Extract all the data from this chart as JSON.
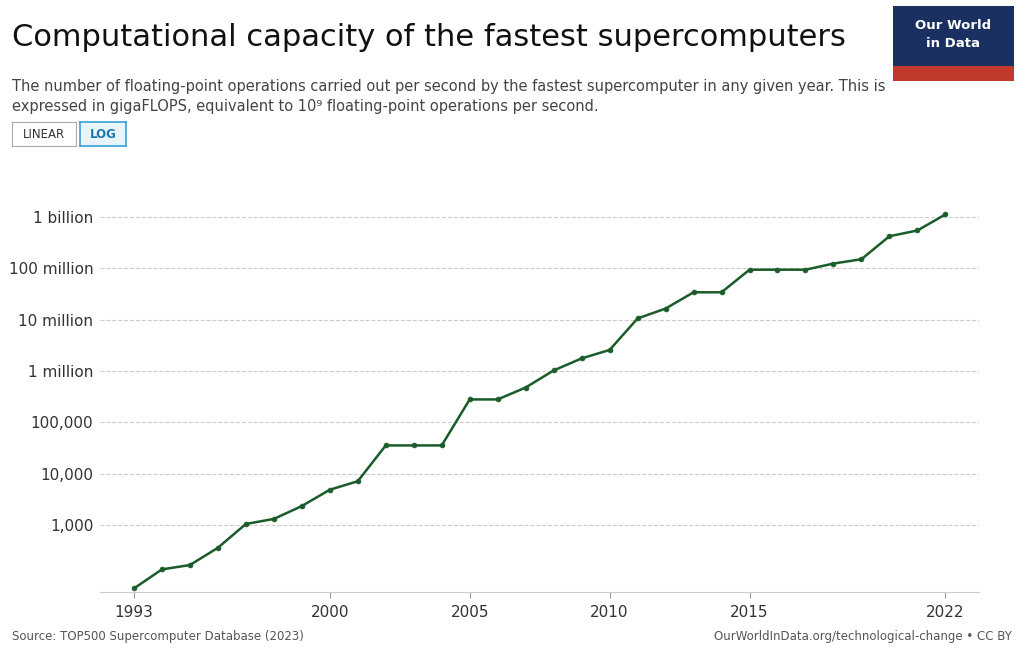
{
  "title": "Computational capacity of the fastest supercomputers",
  "subtitle_line1": "The number of floating-point operations carried out per second by the fastest supercomputer in any given year. This is",
  "subtitle_line2": "expressed in gigaFLOPS, equivalent to 10⁹ floating-point operations per second.",
  "source": "Source: TOP500 Supercomputer Database (2023)",
  "credit": "OurWorldInData.org/technological-change • CC BY",
  "line_color": "#1a5c2a",
  "marker_color": "#1a5c2a",
  "background_color": "#ffffff",
  "years": [
    1993,
    1994,
    1995,
    1996,
    1997,
    1998,
    1999,
    2000,
    2001,
    2002,
    2003,
    2004,
    2005,
    2006,
    2007,
    2008,
    2009,
    2010,
    2011,
    2012,
    2013,
    2014,
    2015,
    2016,
    2017,
    2018,
    2019,
    2020,
    2021,
    2022
  ],
  "values": [
    59.7,
    140,
    170,
    368,
    1068,
    1338,
    2379,
    4938,
    7226,
    35860,
    35860,
    35860,
    280600,
    280600,
    478200,
    1026000,
    1759000,
    2566000,
    10510000,
    16324000,
    33862700,
    33862700,
    93015000,
    93015000,
    93015000,
    122300000,
    148600000,
    415530000,
    537212000,
    1102000000
  ],
  "yticks": [
    1000,
    10000,
    100000,
    1000000,
    10000000,
    100000000,
    1000000000
  ],
  "ytick_labels": [
    "1,000",
    "10,000",
    "100,000",
    "1 million",
    "10 million",
    "100 million",
    "1 billion"
  ],
  "ylim_min": 50,
  "ylim_max": 3000000000,
  "xticks": [
    1993,
    2000,
    2005,
    2010,
    2015,
    2022
  ],
  "grid_color": "#cccccc",
  "title_fontsize": 22,
  "subtitle_fontsize": 10.5,
  "tick_fontsize": 11,
  "logo_bg_color": "#1a3060",
  "logo_red_color": "#c0392b",
  "button_linear_bg": "#ffffff",
  "button_linear_border": "#aaaaaa",
  "button_linear_color": "#333333",
  "button_log_bg": "#e8f4fb",
  "button_log_border": "#3a9fd4",
  "button_log_color": "#1a7aaa"
}
